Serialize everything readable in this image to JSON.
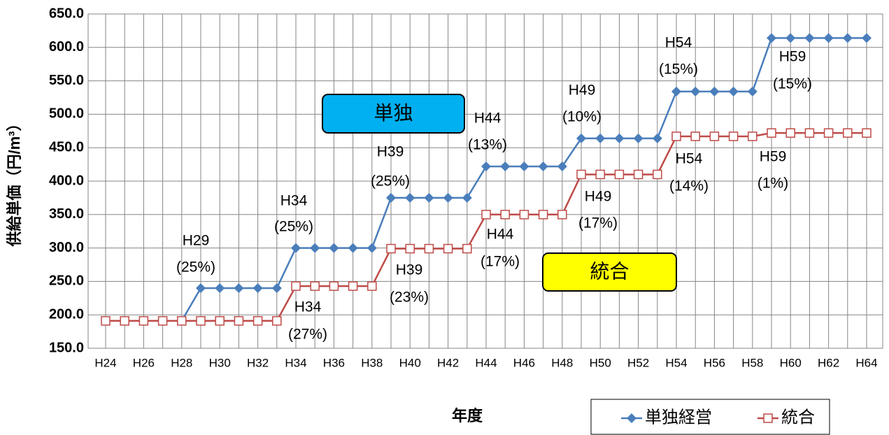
{
  "chart_data": {
    "type": "line",
    "y_label": "供給単価（円/m³）",
    "x_label": "年度",
    "categories": [
      "H24",
      null,
      "H26",
      null,
      "H28",
      null,
      "H30",
      null,
      "H32",
      null,
      "H34",
      null,
      "H36",
      null,
      "H38",
      null,
      "H40",
      null,
      "H42",
      null,
      "H44",
      null,
      "H46",
      null,
      "H48",
      null,
      "H50",
      null,
      "H52",
      null,
      "H54",
      null,
      "H56",
      null,
      "H58",
      null,
      "H60",
      null,
      "H62",
      null,
      "H64"
    ],
    "series": [
      {
        "name": "単独経営",
        "color": "#4a7ebb",
        "marker": "diamond",
        "values": [
          191,
          191,
          191,
          191,
          191,
          240,
          240,
          240,
          240,
          240,
          300,
          300,
          300,
          300,
          300,
          375,
          375,
          375,
          375,
          375,
          422,
          422,
          422,
          422,
          422,
          464,
          464,
          464,
          464,
          464,
          534,
          534,
          534,
          534,
          534,
          614,
          614,
          614,
          614,
          614,
          614
        ]
      },
      {
        "name": "統合",
        "color": "#be4b48",
        "marker": "square",
        "values": [
          191,
          191,
          191,
          191,
          191,
          191,
          191,
          191,
          191,
          191,
          243,
          243,
          243,
          243,
          243,
          299,
          299,
          299,
          299,
          299,
          350,
          350,
          350,
          350,
          350,
          410,
          410,
          410,
          410,
          410,
          467,
          467,
          467,
          467,
          467,
          472,
          472,
          472,
          472,
          472,
          472
        ]
      }
    ],
    "ylim": [
      150,
      650
    ],
    "yticks": [
      {
        "value": 150,
        "label": "150.0"
      },
      {
        "value": 200,
        "label": "200.0"
      },
      {
        "value": 250,
        "label": "250.0"
      },
      {
        "value": 300,
        "label": "300.0"
      },
      {
        "value": 350,
        "label": "350.0"
      },
      {
        "value": 400,
        "label": "400.0"
      },
      {
        "value": 450,
        "label": "450.0"
      },
      {
        "value": 500,
        "label": "500.0"
      },
      {
        "value": 550,
        "label": "550.0"
      },
      {
        "value": 600,
        "label": "600.0"
      },
      {
        "value": 650,
        "label": "650.0"
      }
    ],
    "grid": true,
    "legend": "bottom-right",
    "annotations": [
      [
        "H29",
        "(25%)"
      ],
      [
        "H34",
        "(25%)"
      ],
      [
        "H39",
        "(25%)"
      ],
      [
        "H44",
        "(13%)"
      ],
      [
        "H49",
        "(10%)"
      ],
      [
        "H54",
        "(15%)"
      ],
      [
        "H59",
        "(15%)"
      ],
      [
        "H34",
        "(27%)"
      ],
      [
        "H39",
        "(23%)"
      ],
      [
        "H44",
        "(17%)"
      ],
      [
        "H49",
        "(17%)"
      ],
      [
        "H54",
        "(14%)"
      ],
      [
        "H59",
        "(1%)"
      ]
    ],
    "boxes": [
      "単独",
      "統合"
    ]
  }
}
